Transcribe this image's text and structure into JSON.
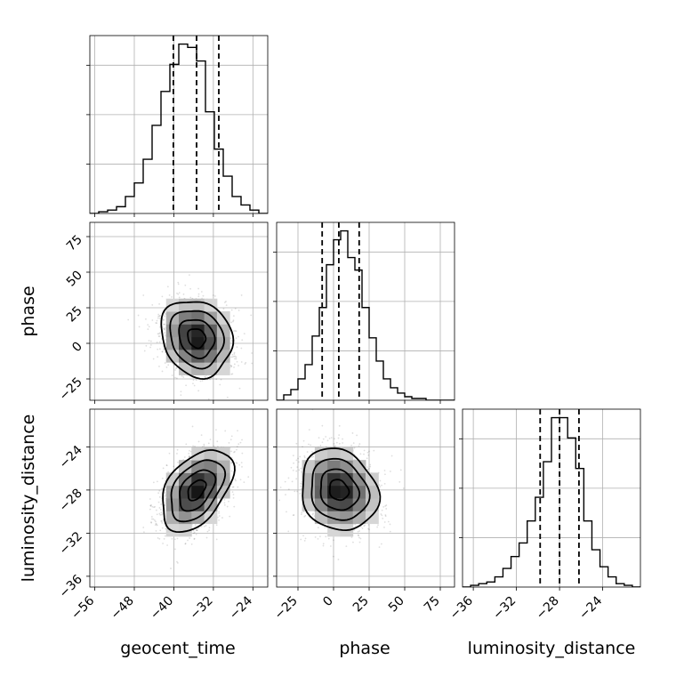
{
  "chart_data": {
    "type": "corner",
    "grid": true,
    "parameters": [
      {
        "name": "geocent_time",
        "xlabel": "geocent_time",
        "xlim": [
          -57,
          -21
        ],
        "ticks": [
          -56,
          -48,
          -40,
          -32,
          -24
        ],
        "quantiles": [
          -40.1,
          -35.4,
          -30.9
        ],
        "hist_bins": [
          -57,
          -55.2,
          -53.4,
          -51.6,
          -49.8,
          -48,
          -46.2,
          -44.4,
          -42.6,
          -40.8,
          -39,
          -37.2,
          -35.4,
          -33.6,
          -31.8,
          -30,
          -28.2,
          -26.4,
          -24.6,
          -22.8,
          -21
        ],
        "hist_counts": [
          0,
          1,
          2,
          4,
          10,
          18,
          32,
          52,
          72,
          88,
          100,
          98,
          90,
          60,
          38,
          22,
          10,
          5,
          2,
          0
        ]
      },
      {
        "name": "phase",
        "xlabel": "phase",
        "ylabel": "phase",
        "lim": [
          -40,
          85
        ],
        "ticks": [
          -25,
          0,
          25,
          50,
          75
        ],
        "quantiles": [
          -8.0,
          3.7,
          18.0
        ],
        "hist_bins": [
          -40,
          -35,
          -30,
          -25,
          -20,
          -15,
          -10,
          -5,
          0,
          5,
          10,
          15,
          20,
          25,
          30,
          35,
          40,
          45,
          50,
          55,
          60,
          65,
          70,
          75,
          80,
          85
        ],
        "hist_counts": [
          0,
          3,
          6,
          12,
          20,
          36,
          52,
          76,
          90,
          95,
          80,
          73,
          52,
          35,
          22,
          12,
          7,
          4,
          2,
          1,
          1,
          0,
          0,
          0,
          0
        ]
      },
      {
        "name": "luminosity_distance",
        "xlabel": "luminosity_distance",
        "ylabel": "luminosity_distance",
        "lim": [
          -37,
          -20.5
        ],
        "ticks": [
          -36,
          -32,
          -28,
          -24
        ],
        "quantiles": [
          -29.8,
          -28.0,
          -26.2
        ],
        "hist_bins": [
          -37,
          -36.25,
          -35.5,
          -34.75,
          -34,
          -33.25,
          -32.5,
          -31.75,
          -31,
          -30.25,
          -29.5,
          -28.75,
          -28,
          -27.25,
          -26.5,
          -25.75,
          -25,
          -24.25,
          -23.5,
          -22.75,
          -22,
          -21.25,
          -20.5
        ],
        "hist_counts": [
          0,
          1,
          2,
          3,
          6,
          11,
          18,
          26,
          39,
          53,
          74,
          100,
          100,
          88,
          70,
          39,
          22,
          12,
          6,
          2,
          1,
          0
        ]
      }
    ],
    "pairs": [
      {
        "x_param": "geocent_time",
        "y_param": "phase",
        "center": [
          -35.4,
          3.7
        ],
        "sigma": [
          3.6,
          13.5
        ],
        "correlation": -0.15
      },
      {
        "x_param": "geocent_time",
        "y_param": "luminosity_distance",
        "center": [
          -35.4,
          -28.0
        ],
        "sigma": [
          3.6,
          1.9
        ],
        "correlation": 0.45
      },
      {
        "x_param": "phase",
        "y_param": "luminosity_distance",
        "center": [
          3.7,
          -28.0
        ],
        "sigma": [
          13.5,
          1.9
        ],
        "correlation": -0.15
      }
    ],
    "contour_levels_sigma": [
      0.5,
      1.0,
      1.5,
      2.0
    ]
  }
}
